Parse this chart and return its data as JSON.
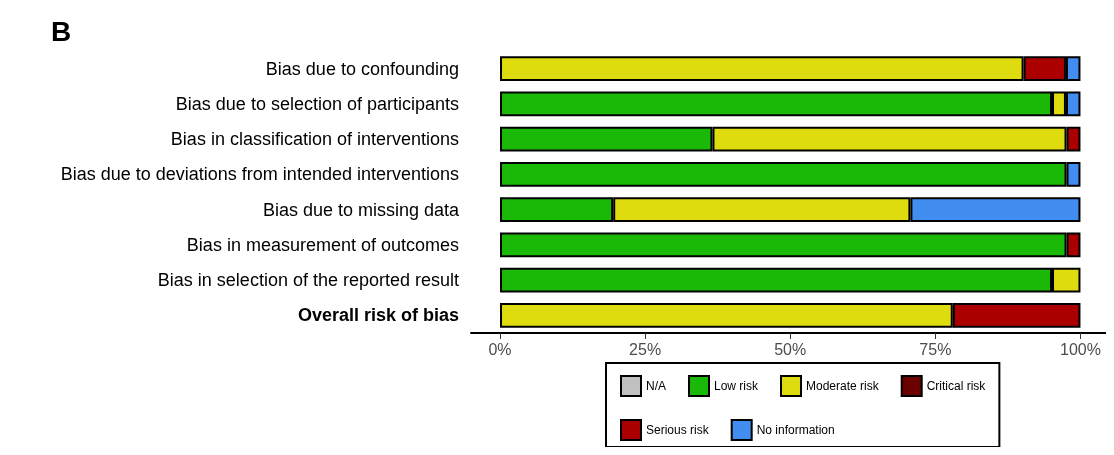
{
  "chart_data": {
    "type": "bar",
    "title": "B",
    "orientation": "horizontal",
    "stacked": true,
    "categories": [
      "Bias due to confounding",
      "Bias due to selection of participants",
      "Bias in classification of interventions",
      "Bias due to deviations from intended interventions",
      "Bias due to missing data",
      "Bias in measurement of outcomes",
      "Bias in selection of the reported result",
      "Overall risk of bias"
    ],
    "series": [
      {
        "name": "N/A",
        "color": "#c0c0c0",
        "values": [
          0,
          0,
          0,
          0,
          0,
          0,
          0,
          0
        ]
      },
      {
        "name": "Low risk",
        "color": "#1ab908",
        "values": [
          0,
          95.1,
          36.6,
          97.6,
          19.5,
          97.6,
          95.1,
          0
        ]
      },
      {
        "name": "Moderate risk",
        "color": "#dedc0e",
        "values": [
          90.2,
          2.4,
          61.0,
          0,
          51.2,
          0,
          4.9,
          78.0
        ]
      },
      {
        "name": "Critical risk",
        "color": "#6b0000",
        "values": [
          0,
          0,
          0,
          0,
          0,
          0,
          0,
          0
        ]
      },
      {
        "name": "Serious risk",
        "color": "#ac0000",
        "values": [
          7.3,
          0,
          2.4,
          0,
          0,
          2.4,
          0,
          22.0
        ]
      },
      {
        "name": "No information",
        "color": "#418df0",
        "values": [
          2.5,
          2.5,
          0,
          2.4,
          29.3,
          0,
          0,
          0
        ]
      }
    ],
    "xlim": [
      -5,
      104.4
    ],
    "xticks": [
      {
        "value": 0,
        "label": "0%"
      },
      {
        "value": 25,
        "label": "25%"
      },
      {
        "value": 50,
        "label": "50%"
      },
      {
        "value": 75,
        "label": "75%"
      },
      {
        "value": 100,
        "label": "100%"
      }
    ],
    "grid": false,
    "legend": "bottom"
  }
}
